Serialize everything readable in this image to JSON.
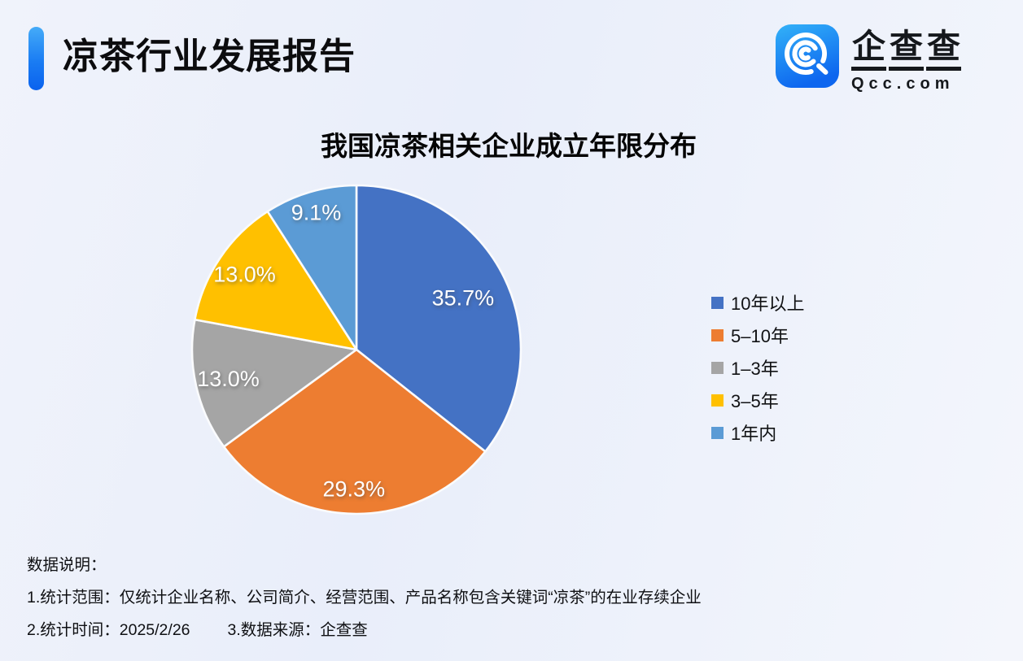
{
  "page": {
    "title": "凉茶行业发展报告",
    "brand": {
      "name": "企查查",
      "domain": "Qcc.com",
      "logo_icon": "qcc-magnifier-q-icon",
      "logo_colors": {
        "top": "#33b2f8",
        "bottom": "#0d66ef"
      }
    },
    "accent_bar_colors": {
      "top": "#45abf8",
      "bottom": "#0a62ee"
    },
    "background_tint": "#edf1fa"
  },
  "chart_data": {
    "type": "pie",
    "title": "我国凉茶相关企业成立年限分布",
    "unit": "%",
    "start_angle": "top",
    "direction": "clockwise",
    "legend_position": "right",
    "label_color": "#ffffff",
    "series": [
      {
        "name": "10年以上",
        "value": 35.7,
        "color": "#4472C4"
      },
      {
        "name": "5–10年",
        "value": 29.3,
        "color": "#ED7D31"
      },
      {
        "name": "1–3年",
        "value": 13.0,
        "color": "#A5A5A5"
      },
      {
        "name": "3–5年",
        "value": 13.0,
        "color": "#FFC000"
      },
      {
        "name": "1年内",
        "value": 9.1,
        "color": "#5B9BD5"
      }
    ]
  },
  "notes": {
    "heading": "数据说明：",
    "line1": "1.统计范围：仅统计企业名称、公司简介、经营范围、产品名称包含关键词“凉茶”的在业存续企业",
    "line2_time": "2.统计时间：2025/2/26",
    "line2_source": "3.数据来源：企查查"
  }
}
